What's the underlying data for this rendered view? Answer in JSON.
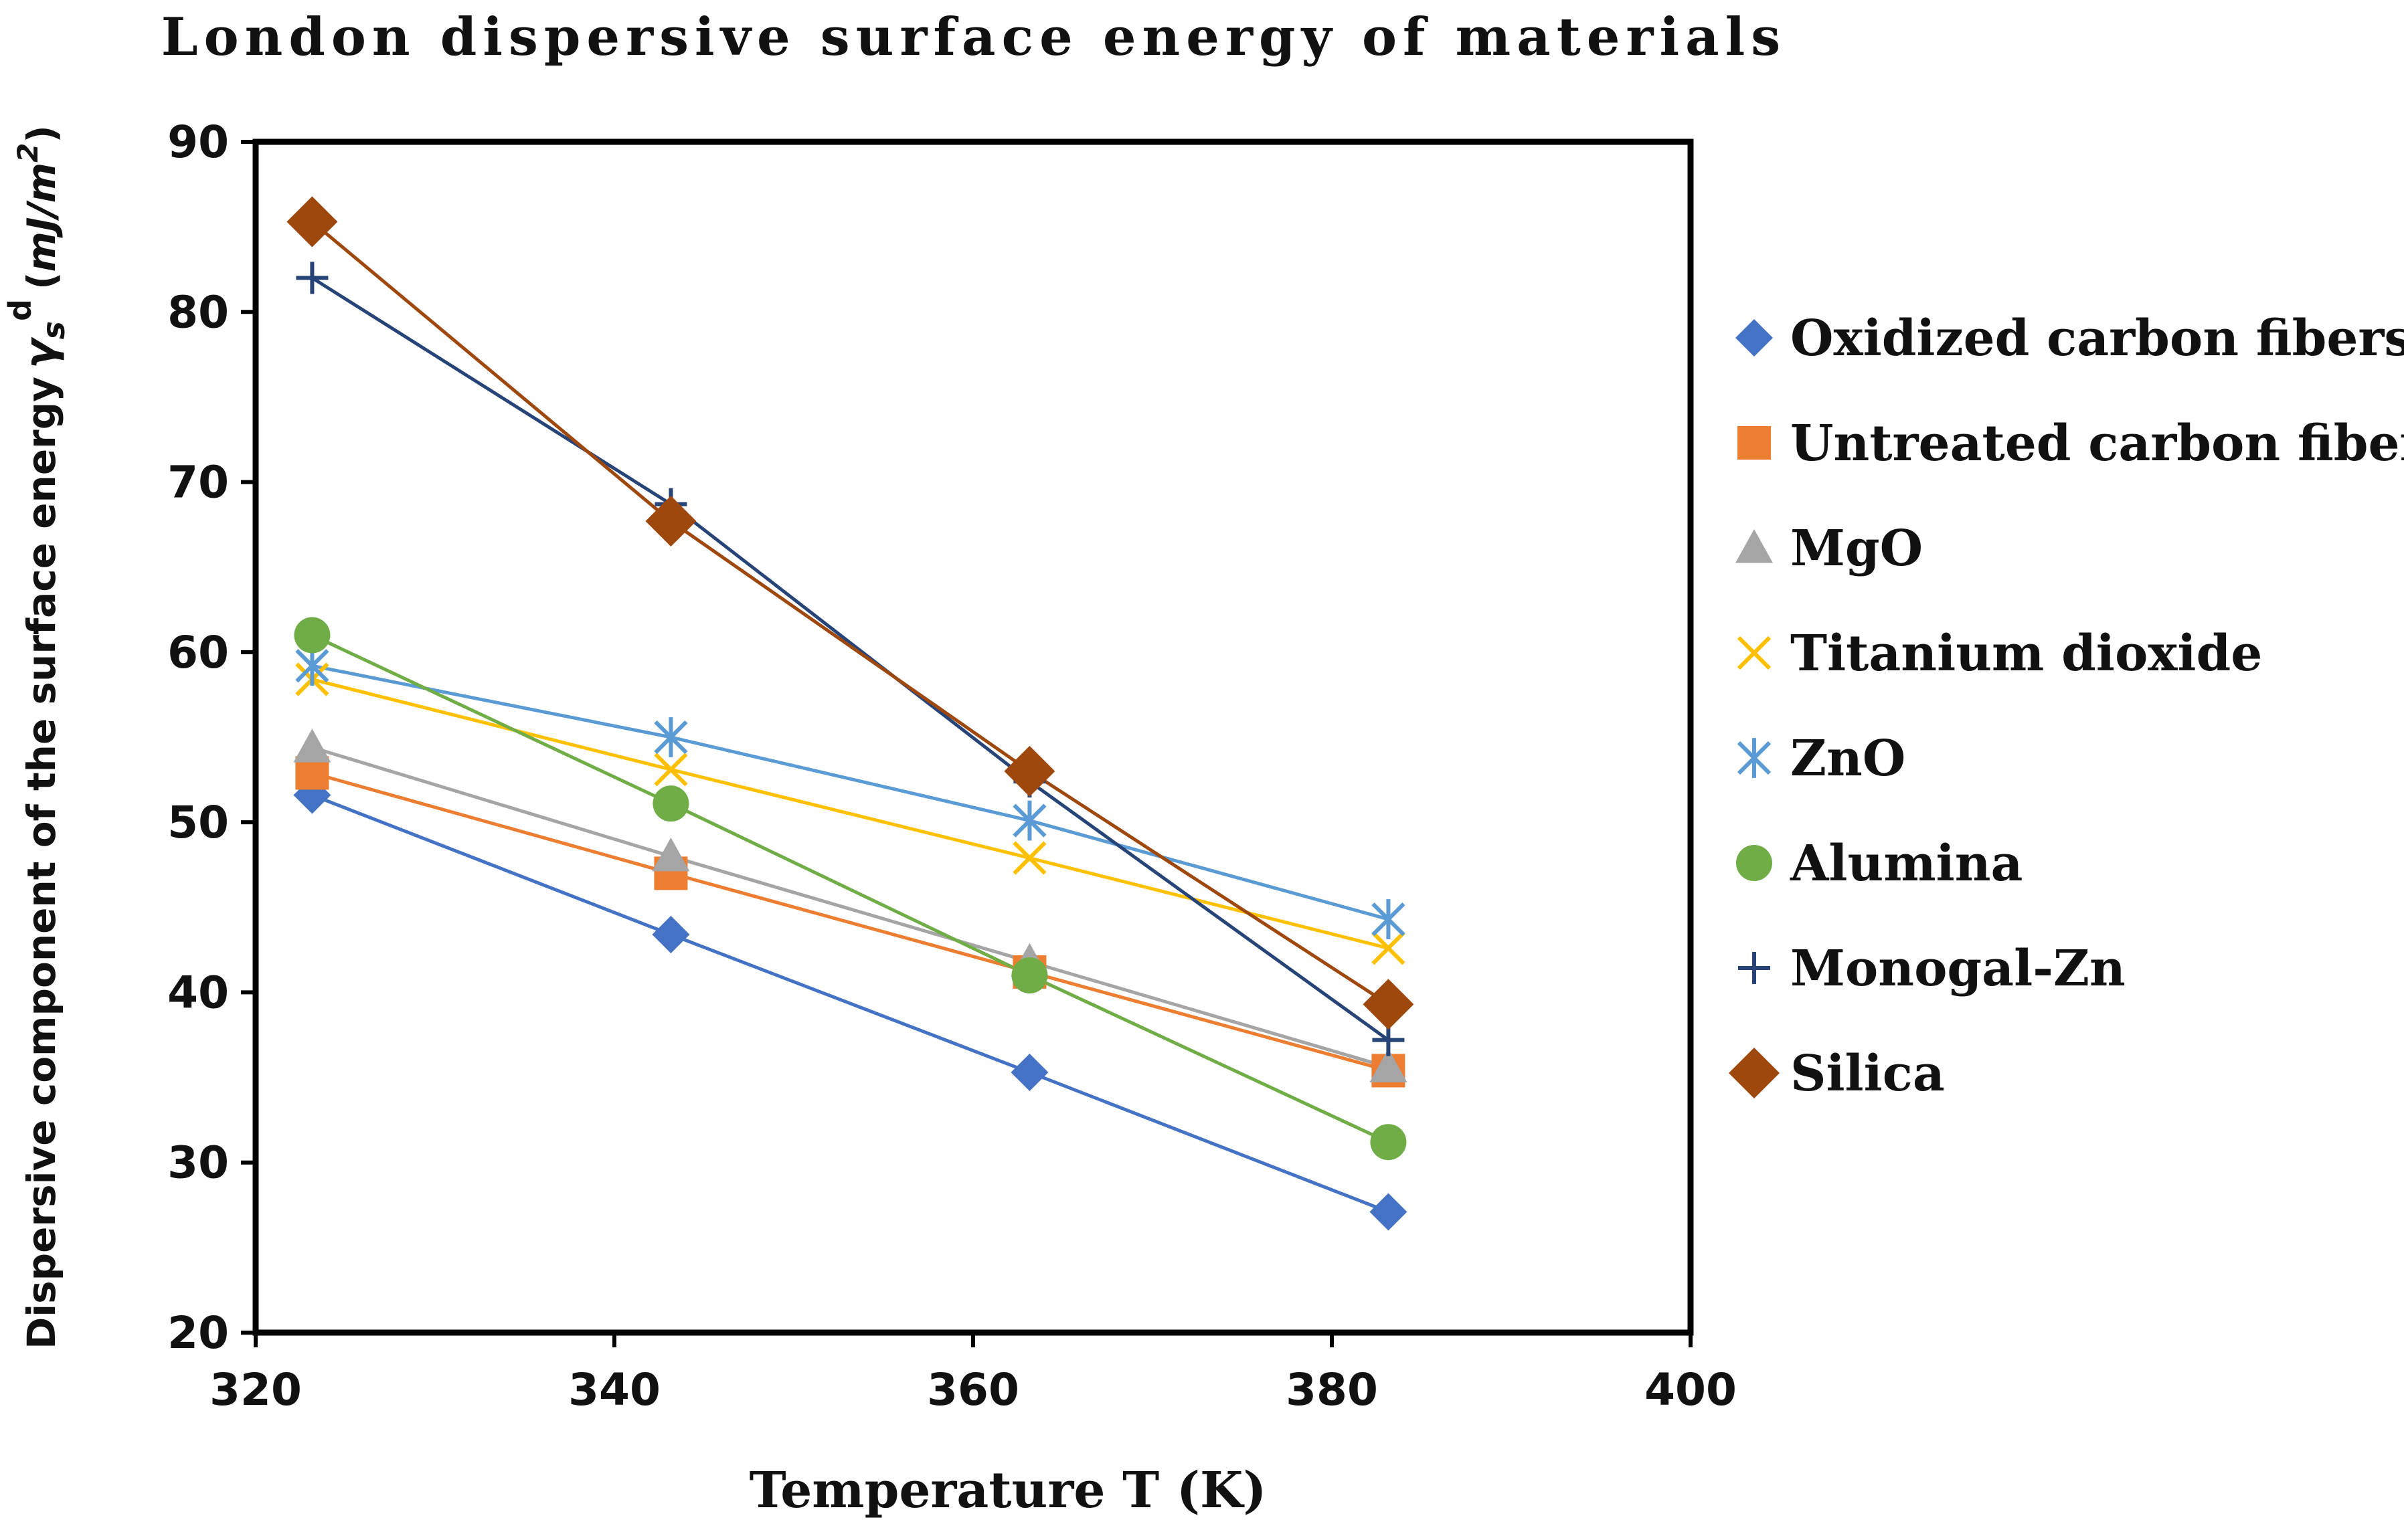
{
  "chart_data": {
    "type": "line",
    "title": "London dispersive surface energy of materials",
    "xlabel": "Temperature T (K)",
    "ylabel": {
      "prefix": "Dispersive component of the surface energy",
      "symbol": "γ",
      "subscript": "s",
      "superscript": "d",
      "unit_open": "(",
      "unit_main": "mJ/m",
      "unit_power": "2",
      "unit_close": ")"
    },
    "xlim": [
      320,
      400
    ],
    "ylim": [
      20,
      90
    ],
    "xticks": [
      320,
      340,
      360,
      380,
      400
    ],
    "yticks": [
      20,
      30,
      40,
      50,
      60,
      70,
      80,
      90
    ],
    "grid": false,
    "legend_position": "right",
    "x": [
      323.15,
      343.15,
      363.15,
      383.15
    ],
    "series": [
      {
        "name": "Oxidized carbon fibers",
        "marker": "diamond",
        "color": "#4472C4",
        "values": [
          51.6,
          43.4,
          35.3,
          27.1
        ]
      },
      {
        "name": "Untreated carbon fibers",
        "marker": "square",
        "color": "#ED7D31",
        "values": [
          52.9,
          47.0,
          41.2,
          35.4
        ]
      },
      {
        "name": "MgO",
        "marker": "triangle",
        "color": "#A5A5A5",
        "values": [
          54.4,
          48.0,
          41.8,
          35.6
        ]
      },
      {
        "name": "Titanium dioxide",
        "marker": "x",
        "color": "#FFC000",
        "values": [
          58.4,
          53.1,
          47.9,
          42.6
        ]
      },
      {
        "name": "ZnO",
        "marker": "star",
        "color": "#5B9BD5",
        "values": [
          59.2,
          55.0,
          50.1,
          44.3
        ]
      },
      {
        "name": "Alumina",
        "marker": "circle",
        "color": "#70AD47",
        "values": [
          61.0,
          51.1,
          41.0,
          31.2
        ]
      },
      {
        "name": "Monogal-Zn",
        "marker": "plus",
        "color": "#264478",
        "values": [
          82.0,
          68.7,
          52.4,
          37.2
        ]
      },
      {
        "name": "Silica",
        "marker": "bigdiamond",
        "color": "#9E480E",
        "values": [
          85.3,
          67.7,
          53.0,
          39.3
        ]
      }
    ]
  }
}
